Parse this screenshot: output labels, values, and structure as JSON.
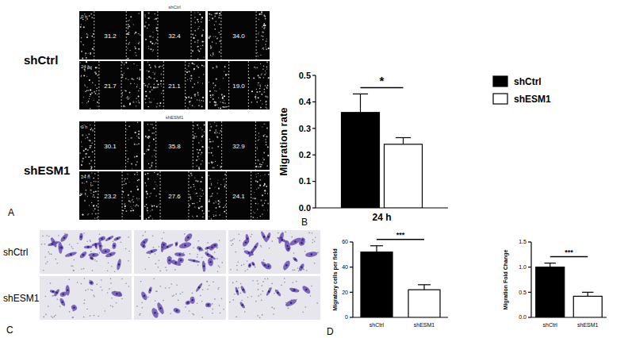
{
  "panel_labels": [
    "A",
    "B",
    "C",
    "D"
  ],
  "wound_healing": {
    "timepoints": [
      "0 h",
      "24 h"
    ],
    "groups": [
      {
        "label": "shCtrl",
        "widths": [
          [
            "31.2",
            "32.4",
            "34.0"
          ],
          [
            "21.7",
            "21.1",
            "19.0"
          ]
        ]
      },
      {
        "label": "shESM1",
        "widths": [
          [
            "30.1",
            "35.8",
            "32.9"
          ],
          [
            "23.2",
            "27.6",
            "24.1"
          ]
        ]
      }
    ]
  },
  "transwell": {
    "groups": [
      "shCtrl",
      "shESM1"
    ]
  },
  "chart_data": [
    {
      "type": "bar",
      "y_label": "Migration rate",
      "categories": [
        "24 h"
      ],
      "series": [
        {
          "name": "shCtrl",
          "color": "#000000",
          "values": [
            0.36
          ],
          "errors": [
            0.07
          ]
        },
        {
          "name": "shESM1",
          "color": "#ffffff",
          "values": [
            0.24
          ],
          "errors": [
            0.025
          ]
        }
      ],
      "ylim": [
        0,
        0.5
      ],
      "yticks": [
        {
          "value": 0,
          "label": "0.0"
        },
        0.1,
        0.2,
        0.3,
        0.4,
        0.5
      ],
      "legend": "right",
      "annotations": [
        "*"
      ]
    },
    {
      "type": "bar",
      "y_label": "Migratory cells per field",
      "categories": [
        "shCtrl",
        "shESM1"
      ],
      "values": [
        52,
        22
      ],
      "errors": [
        5,
        4
      ],
      "colors": [
        "#000000",
        "#ffffff"
      ],
      "ylim": [
        0,
        60
      ],
      "yticks": [
        0,
        20,
        40,
        60
      ],
      "annotations": [
        "***"
      ]
    },
    {
      "type": "bar",
      "y_label": "Migration Fold Change",
      "categories": [
        "shCtrl",
        "shESM1"
      ],
      "values": [
        1.0,
        0.42
      ],
      "errors": [
        0.08,
        0.08
      ],
      "colors": [
        "#000000",
        "#ffffff"
      ],
      "ylim": [
        0,
        1.5
      ],
      "yticks": [
        {
          "value": 0,
          "label": "0.0"
        },
        {
          "value": 0.5,
          "label": "0.5"
        },
        {
          "value": 1,
          "label": "1.0"
        },
        {
          "value": 1.5,
          "label": "1.5"
        }
      ],
      "annotations": [
        "***"
      ]
    }
  ]
}
